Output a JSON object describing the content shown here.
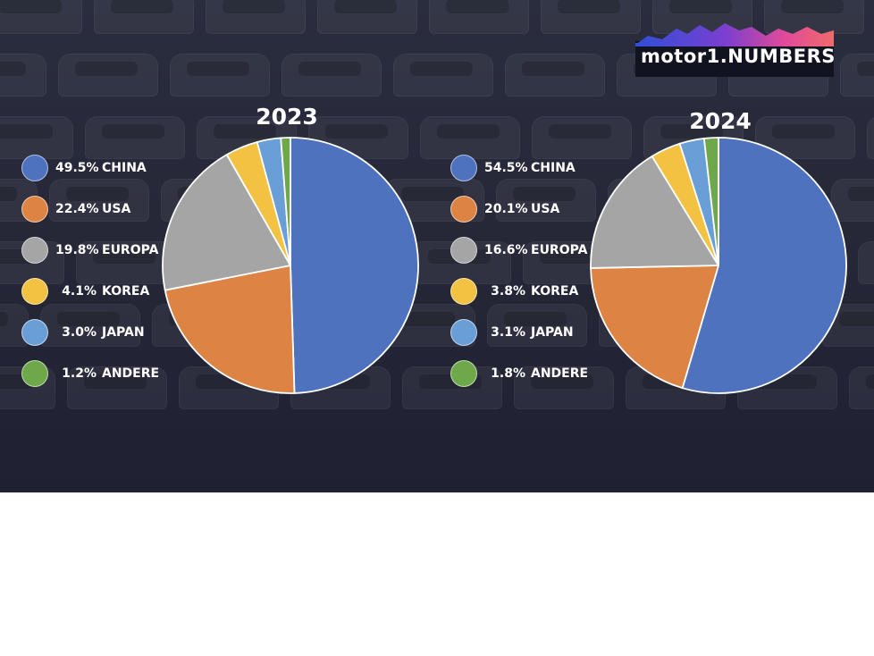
{
  "logo": {
    "text": "motor1.NUMBERS"
  },
  "colors": {
    "CHINA": "#4f72be",
    "USA": "#dd8344",
    "EUROPA": "#a5a5a5",
    "KOREA": "#f3c242",
    "JAPAN": "#6a9ed6",
    "ANDERE": "#6fa84b"
  },
  "chart_data": [
    {
      "type": "pie",
      "title": "2023",
      "categories": [
        "CHINA",
        "USA",
        "EUROPA",
        "KOREA",
        "JAPAN",
        "ANDERE"
      ],
      "values": [
        49.5,
        22.4,
        19.8,
        4.1,
        3.0,
        1.2
      ],
      "labels": [
        "49.5%",
        "22.4%",
        "19.8%",
        "4.1%",
        "3.0%",
        "1.2%"
      ],
      "legend": "left"
    },
    {
      "type": "pie",
      "title": "2024",
      "categories": [
        "CHINA",
        "USA",
        "EUROPA",
        "KOREA",
        "JAPAN",
        "ANDERE"
      ],
      "values": [
        54.5,
        20.1,
        16.6,
        3.8,
        3.1,
        1.8
      ],
      "labels": [
        "54.5%",
        "20.1%",
        "16.6%",
        "3.8%",
        "3.1%",
        "1.8%"
      ],
      "legend": "left"
    }
  ]
}
